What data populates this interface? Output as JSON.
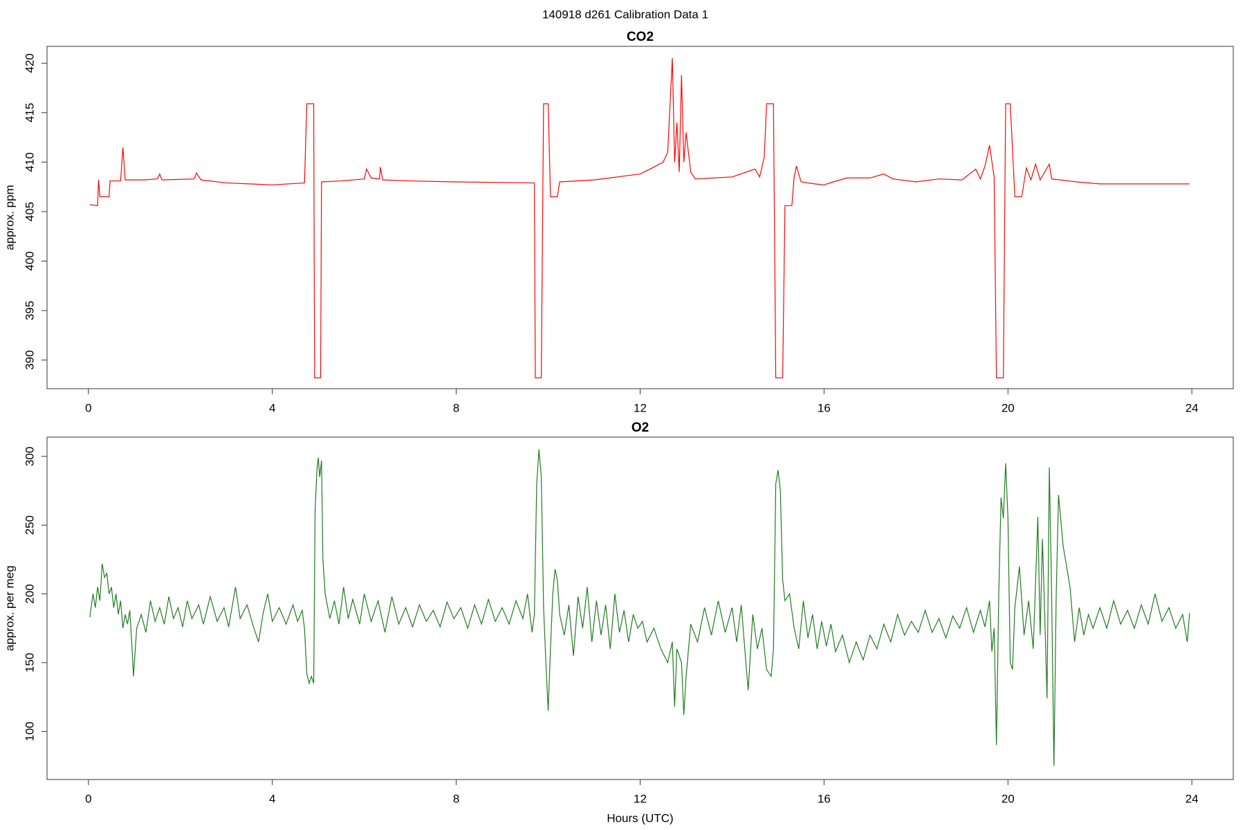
{
  "title": "140918   d261   Calibration Data 1",
  "chart_data": [
    {
      "type": "line",
      "title": "CO2",
      "ylabel": "approx. ppm",
      "xlim": [
        -0.9,
        24.9
      ],
      "xticks": [
        0,
        4,
        8,
        12,
        16,
        20,
        24
      ],
      "ylim": [
        387.1,
        421.7
      ],
      "yticks": [
        390,
        395,
        400,
        405,
        410,
        415,
        420
      ],
      "x": [
        0.03,
        0.2,
        0.22,
        0.25,
        0.45,
        0.47,
        0.7,
        0.75,
        0.8,
        1.2,
        1.5,
        1.55,
        1.6,
        2.3,
        2.35,
        2.45,
        3.0,
        3.5,
        4.0,
        4.7,
        4.75,
        4.9,
        4.92,
        5.05,
        5.07,
        5.5,
        6.0,
        6.05,
        6.15,
        6.33,
        6.35,
        6.4,
        7.0,
        8.0,
        9.7,
        9.72,
        9.85,
        9.9,
        10.0,
        10.05,
        10.2,
        10.25,
        11.0,
        11.5,
        12.0,
        12.3,
        12.5,
        12.6,
        12.7,
        12.75,
        12.8,
        12.85,
        12.9,
        12.95,
        13.0,
        13.1,
        13.2,
        14.0,
        14.5,
        14.6,
        14.7,
        14.75,
        14.9,
        14.95,
        15.1,
        15.15,
        15.3,
        15.35,
        15.4,
        15.5,
        15.8,
        16.0,
        16.2,
        16.5,
        17.0,
        17.3,
        17.5,
        18.0,
        18.5,
        19.0,
        19.3,
        19.4,
        19.5,
        19.6,
        19.7,
        19.75,
        19.9,
        19.95,
        20.05,
        20.15,
        20.3,
        20.4,
        20.5,
        20.6,
        20.7,
        20.9,
        20.95,
        21.5,
        22.0,
        23.0,
        23.95
      ],
      "series": [
        {
          "color": "#ff0000",
          "values": [
            405.7,
            405.6,
            408.2,
            406.5,
            406.5,
            408.1,
            408.1,
            411.5,
            408.2,
            408.2,
            408.3,
            408.8,
            408.2,
            408.3,
            408.9,
            408.2,
            407.9,
            407.8,
            407.7,
            407.9,
            415.9,
            415.9,
            388.2,
            388.2,
            408.0,
            408.1,
            408.3,
            409.3,
            408.4,
            408.3,
            409.5,
            408.2,
            408.1,
            408.0,
            407.9,
            388.2,
            388.2,
            415.9,
            415.9,
            406.5,
            406.5,
            408.0,
            408.2,
            408.5,
            408.8,
            409.5,
            410.0,
            411.0,
            420.5,
            410.0,
            414.0,
            409.0,
            418.8,
            410.0,
            413.0,
            409.0,
            408.3,
            408.5,
            409.3,
            408.5,
            410.5,
            415.9,
            415.9,
            388.2,
            388.2,
            405.6,
            405.6,
            408.5,
            409.6,
            408.0,
            407.8,
            407.7,
            408.0,
            408.4,
            408.4,
            408.8,
            408.3,
            408.0,
            408.3,
            408.2,
            409.3,
            408.3,
            409.6,
            411.7,
            408.5,
            388.2,
            388.2,
            415.9,
            415.9,
            406.5,
            406.5,
            409.4,
            408.2,
            409.8,
            408.2,
            409.8,
            408.3,
            408.0,
            407.8,
            407.8,
            407.8
          ]
        }
      ]
    },
    {
      "type": "line",
      "title": "O2",
      "ylabel": "approx. per meg",
      "xlabel": "Hours (UTC)",
      "xlim": [
        -0.9,
        24.9
      ],
      "xticks": [
        0,
        4,
        8,
        12,
        16,
        20,
        24
      ],
      "ylim": [
        65,
        314
      ],
      "yticks": [
        100,
        150,
        200,
        250,
        300
      ],
      "x": [
        0.03,
        0.1,
        0.15,
        0.2,
        0.25,
        0.3,
        0.35,
        0.4,
        0.45,
        0.5,
        0.55,
        0.6,
        0.65,
        0.7,
        0.75,
        0.8,
        0.85,
        0.9,
        0.95,
        0.98,
        1.05,
        1.15,
        1.25,
        1.35,
        1.45,
        1.55,
        1.65,
        1.75,
        1.85,
        1.95,
        2.05,
        2.15,
        2.25,
        2.4,
        2.5,
        2.65,
        2.8,
        2.95,
        3.05,
        3.2,
        3.3,
        3.45,
        3.6,
        3.7,
        3.8,
        3.9,
        4.0,
        4.15,
        4.3,
        4.45,
        4.55,
        4.65,
        4.7,
        4.75,
        4.8,
        4.85,
        4.9,
        4.93,
        4.97,
        5.0,
        5.03,
        5.07,
        5.1,
        5.15,
        5.25,
        5.35,
        5.45,
        5.55,
        5.65,
        5.75,
        5.9,
        6.0,
        6.15,
        6.3,
        6.45,
        6.6,
        6.75,
        6.9,
        7.05,
        7.2,
        7.35,
        7.5,
        7.65,
        7.8,
        7.95,
        8.1,
        8.25,
        8.4,
        8.55,
        8.7,
        8.85,
        9.0,
        9.15,
        9.3,
        9.45,
        9.55,
        9.65,
        9.7,
        9.75,
        9.8,
        9.85,
        9.9,
        9.95,
        10.0,
        10.05,
        10.1,
        10.15,
        10.2,
        10.25,
        10.35,
        10.45,
        10.55,
        10.65,
        10.75,
        10.85,
        10.95,
        11.05,
        11.15,
        11.25,
        11.35,
        11.45,
        11.55,
        11.65,
        11.75,
        11.85,
        11.95,
        12.05,
        12.15,
        12.3,
        12.45,
        12.6,
        12.7,
        12.75,
        12.8,
        12.9,
        12.95,
        13.0,
        13.1,
        13.25,
        13.4,
        13.55,
        13.7,
        13.85,
        14.0,
        14.1,
        14.2,
        14.3,
        14.35,
        14.45,
        14.55,
        14.65,
        14.75,
        14.85,
        14.9,
        14.95,
        15.0,
        15.05,
        15.1,
        15.15,
        15.25,
        15.35,
        15.45,
        15.55,
        15.65,
        15.75,
        15.85,
        15.95,
        16.05,
        16.15,
        16.25,
        16.4,
        16.55,
        16.7,
        16.85,
        17.0,
        17.15,
        17.3,
        17.45,
        17.6,
        17.75,
        17.9,
        18.05,
        18.2,
        18.35,
        18.5,
        18.65,
        18.8,
        18.95,
        19.1,
        19.25,
        19.4,
        19.5,
        19.6,
        19.65,
        19.7,
        19.75,
        19.8,
        19.85,
        19.9,
        19.95,
        20.0,
        20.05,
        20.1,
        20.15,
        20.25,
        20.35,
        20.45,
        20.55,
        20.65,
        20.7,
        20.75,
        20.8,
        20.85,
        20.9,
        20.95,
        21.0,
        21.05,
        21.1,
        21.2,
        21.35,
        21.45,
        21.55,
        21.65,
        21.75,
        21.85,
        22.0,
        22.15,
        22.3,
        22.45,
        22.6,
        22.75,
        22.9,
        23.05,
        23.2,
        23.35,
        23.5,
        23.65,
        23.8,
        23.9,
        23.95
      ],
      "series": [
        {
          "color": "#1e7b1e",
          "values": [
            183,
            200,
            190,
            205,
            195,
            222,
            212,
            215,
            200,
            205,
            190,
            200,
            185,
            195,
            175,
            185,
            178,
            188,
            160,
            140,
            175,
            185,
            172,
            195,
            180,
            190,
            178,
            198,
            182,
            190,
            176,
            195,
            182,
            192,
            178,
            198,
            180,
            190,
            176,
            205,
            182,
            192,
            175,
            165,
            186,
            200,
            180,
            190,
            178,
            192,
            180,
            188,
            175,
            142,
            135,
            140,
            135,
            260,
            290,
            299,
            285,
            297,
            225,
            200,
            182,
            195,
            178,
            205,
            182,
            196,
            178,
            200,
            180,
            195,
            172,
            198,
            178,
            190,
            176,
            192,
            180,
            188,
            176,
            194,
            182,
            190,
            175,
            192,
            178,
            196,
            180,
            190,
            178,
            195,
            182,
            200,
            172,
            185,
            280,
            305,
            285,
            190,
            150,
            115,
            160,
            200,
            218,
            210,
            185,
            170,
            192,
            155,
            198,
            175,
            205,
            165,
            195,
            170,
            192,
            160,
            200,
            172,
            188,
            165,
            185,
            175,
            180,
            165,
            175,
            160,
            150,
            165,
            118,
            160,
            150,
            112,
            140,
            178,
            165,
            190,
            170,
            195,
            172,
            190,
            165,
            192,
            150,
            130,
            185,
            160,
            175,
            145,
            140,
            160,
            280,
            290,
            275,
            210,
            195,
            200,
            175,
            160,
            195,
            168,
            185,
            160,
            180,
            162,
            178,
            158,
            170,
            150,
            165,
            152,
            170,
            160,
            178,
            165,
            185,
            170,
            180,
            172,
            188,
            172,
            182,
            168,
            184,
            175,
            190,
            172,
            188,
            176,
            195,
            158,
            175,
            90,
            200,
            270,
            255,
            295,
            255,
            150,
            145,
            190,
            220,
            170,
            195,
            160,
            256,
            170,
            240,
            185,
            124,
            292,
            200,
            75,
            200,
            272,
            235,
            205,
            165,
            190,
            170,
            185,
            175,
            190,
            175,
            195,
            178,
            188,
            175,
            192,
            178,
            200,
            180,
            190,
            175,
            185,
            165,
            186
          ]
        }
      ]
    }
  ]
}
